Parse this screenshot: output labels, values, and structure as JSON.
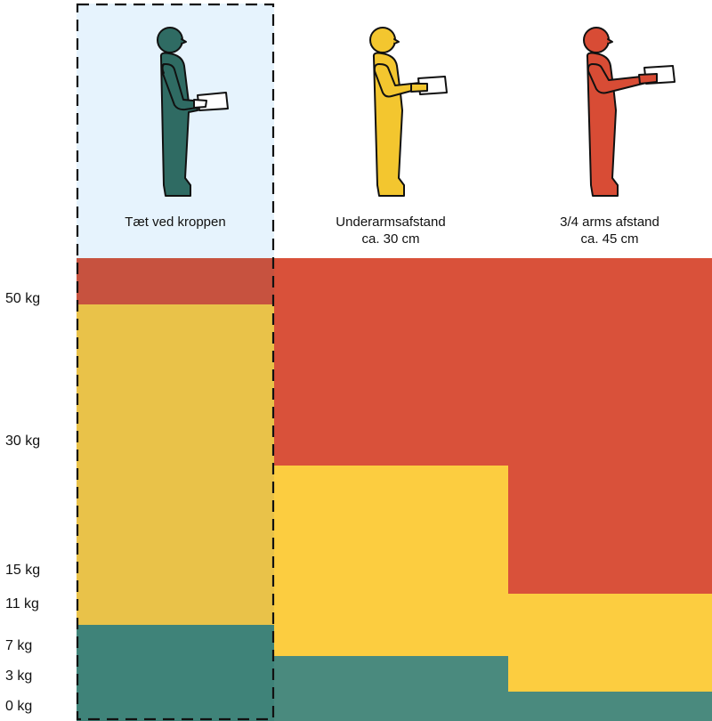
{
  "columns": [
    {
      "id": "close",
      "label_line1": "Tæt ved kroppen",
      "label_line2": "",
      "figure_color": "#2f6b63",
      "highlighted": true
    },
    {
      "id": "forearm",
      "label_line1": "Underarmsafstand",
      "label_line2": "ca. 30 cm",
      "figure_color": "#f3c62f",
      "highlighted": false
    },
    {
      "id": "threequarter",
      "label_line1": "3/4 arms afstand",
      "label_line2": "ca. 45 cm",
      "figure_color": "#d84c35",
      "highlighted": false
    }
  ],
  "y_axis": {
    "ticks": [
      "50 kg",
      "30 kg",
      "15 kg",
      "11 kg",
      "7 kg",
      "3 kg",
      "0 kg"
    ]
  },
  "zones": [
    {
      "column": "close",
      "green_max_kg": 7,
      "yellow_max_kg": 50
    },
    {
      "column": "forearm",
      "green_max_kg": 3,
      "yellow_max_kg": 30
    },
    {
      "column": "threequarter",
      "green_max_kg": 0,
      "yellow_max_kg": 11
    }
  ],
  "colors": {
    "red": "#d9513a",
    "yellow": "#fccd40",
    "green": "#4a8a7e",
    "highlight_bg": "#e6f3fd",
    "highlight_red": "#c7523f",
    "highlight_yellow": "#e9c249",
    "highlight_green": "#3f8379"
  }
}
